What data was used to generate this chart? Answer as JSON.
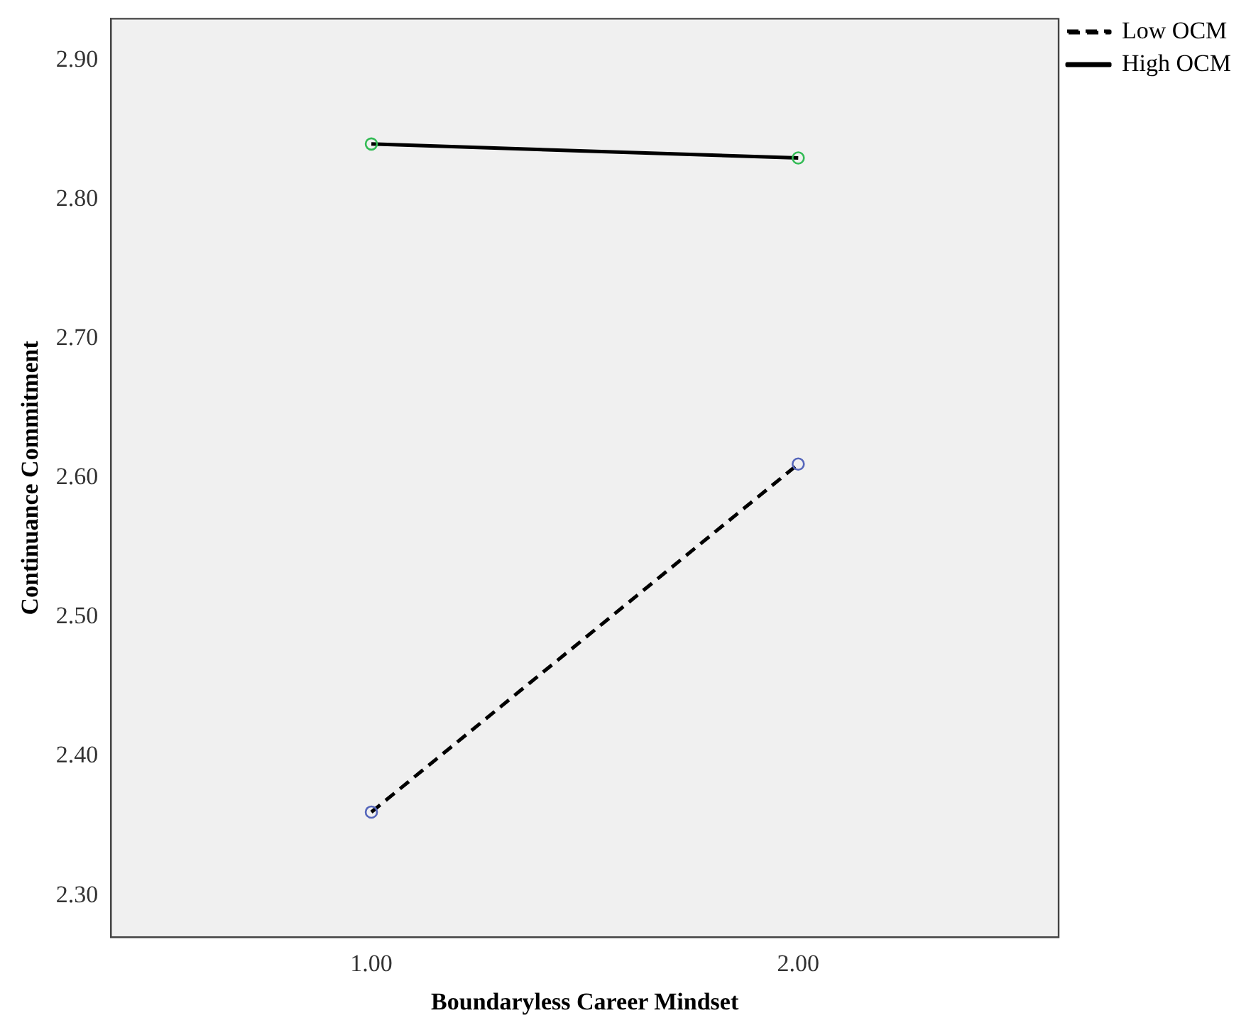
{
  "chart_data": {
    "type": "line",
    "xlabel": "Boundaryless Career Mindset",
    "ylabel": "Continuance Commitment",
    "x": [
      1,
      2
    ],
    "series": [
      {
        "name": "Low OCM",
        "color": "#000000",
        "colors": [
          "#5566bb",
          "#5566bb"
        ],
        "line_style": "dashed",
        "values": [
          2.36,
          2.61
        ]
      },
      {
        "name": "High OCM",
        "color": "#000000",
        "colors": [
          "#33bb55",
          "#33bb55"
        ],
        "line_style": "solid",
        "values": [
          2.84,
          2.83
        ]
      }
    ],
    "xlim": [
      0.39,
      2.61
    ],
    "xticks": [
      {
        "value": 1,
        "label": "1.00"
      },
      {
        "value": 2,
        "label": "2.00"
      }
    ],
    "ylim": [
      2.27,
      2.93
    ],
    "yticks": [
      {
        "value": 2.3,
        "label": "2.30"
      },
      {
        "value": 2.4,
        "label": "2.40"
      },
      {
        "value": 2.5,
        "label": "2.50"
      },
      {
        "value": 2.6,
        "label": "2.60"
      },
      {
        "value": 2.7,
        "label": "2.70"
      },
      {
        "value": 2.8,
        "label": "2.80"
      },
      {
        "value": 2.9,
        "label": "2.90"
      }
    ],
    "grid": false,
    "legend": "top right",
    "marker": "circle"
  }
}
